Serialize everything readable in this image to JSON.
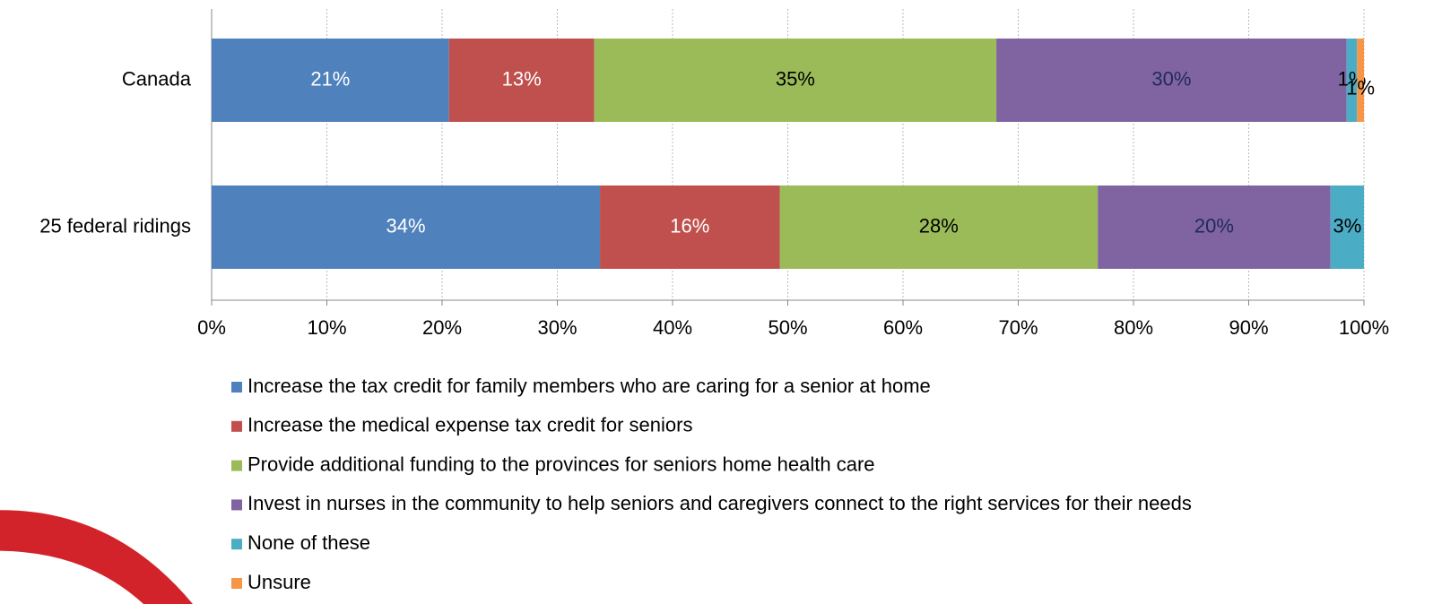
{
  "chart_data": {
    "type": "stacked_barh",
    "categories": [
      "Canada",
      "25 federal ridings"
    ],
    "xlim": [
      0,
      100
    ],
    "xticks": [
      {
        "value": 0,
        "label": "0%"
      },
      {
        "value": 10,
        "label": "10%"
      },
      {
        "value": 20,
        "label": "20%"
      },
      {
        "value": 30,
        "label": "30%"
      },
      {
        "value": 40,
        "label": "40%"
      },
      {
        "value": 50,
        "label": "50%"
      },
      {
        "value": 60,
        "label": "60%"
      },
      {
        "value": 70,
        "label": "70%"
      },
      {
        "value": 80,
        "label": "80%"
      },
      {
        "value": 90,
        "label": "90%"
      },
      {
        "value": 100,
        "label": "100%"
      }
    ],
    "grid": true,
    "legend": "bottom",
    "series": [
      {
        "name": "Increase the tax credit for family members who are caring for a senior at home",
        "color": "#4f81bd",
        "label_color": "#ffffff",
        "values": [
          20.6,
          33.7
        ],
        "value_labels": [
          "21%",
          "34%"
        ]
      },
      {
        "name": "Increase the medical expense tax credit for seniors",
        "color": "#c0504d",
        "label_color": "#ffffff",
        "values": [
          12.6,
          15.6
        ],
        "value_labels": [
          "13%",
          "16%"
        ]
      },
      {
        "name": "Provide additional funding to the provinces for seniors home health care",
        "color": "#9bbb59",
        "label_color": "#000000",
        "values": [
          34.9,
          27.6
        ],
        "value_labels": [
          "35%",
          "28%"
        ]
      },
      {
        "name": "Invest in nurses in the community to help seniors and caregivers connect to the right services for their needs",
        "color": "#8064a2",
        "label_color": "#1f2a5a",
        "values": [
          30.4,
          20.2
        ],
        "value_labels": [
          "30%",
          "20%"
        ]
      },
      {
        "name": "None of these",
        "color": "#4bacc6",
        "label_color": "#000000",
        "values": [
          0.9,
          2.9
        ],
        "value_labels": [
          "1%",
          "3%"
        ]
      },
      {
        "name": "Unsure",
        "color": "#f79646",
        "label_color": "#000000",
        "values": [
          0.6,
          0
        ],
        "value_labels": [
          "1%",
          null
        ]
      }
    ]
  }
}
